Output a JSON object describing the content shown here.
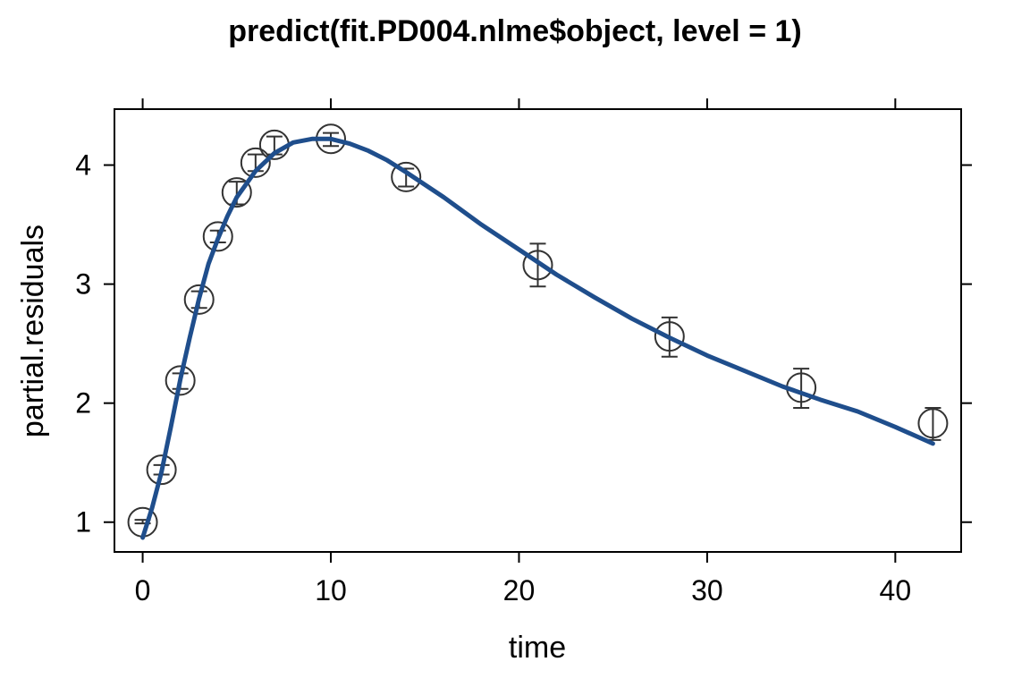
{
  "chart_data": {
    "type": "scatter",
    "title": "predict(fit.PD004.nlme$object, level = 1)",
    "xlabel": "time",
    "ylabel": "partial.residuals",
    "xlim": [
      -1.5,
      43.5
    ],
    "ylim": [
      0.75,
      4.47
    ],
    "x_ticks": [
      0,
      10,
      20,
      30,
      40
    ],
    "y_ticks": [
      1,
      2,
      3,
      4
    ],
    "grid": false,
    "legend": "none",
    "colors": {
      "line": "#1f4e8c",
      "points": "#333333"
    },
    "points": [
      {
        "x": 0,
        "y": 1.0,
        "lower": 0.99,
        "upper": 1.02
      },
      {
        "x": 1,
        "y": 1.44,
        "lower": 1.4,
        "upper": 1.48
      },
      {
        "x": 2,
        "y": 2.19,
        "lower": 2.12,
        "upper": 2.25
      },
      {
        "x": 3,
        "y": 2.87,
        "lower": 2.8,
        "upper": 2.94
      },
      {
        "x": 4,
        "y": 3.4,
        "lower": 3.35,
        "upper": 3.45
      },
      {
        "x": 5,
        "y": 3.77,
        "lower": 3.67,
        "upper": 3.86
      },
      {
        "x": 6,
        "y": 4.02,
        "lower": 3.95,
        "upper": 4.09
      },
      {
        "x": 7,
        "y": 4.17,
        "lower": 4.09,
        "upper": 4.24
      },
      {
        "x": 10,
        "y": 4.22,
        "lower": 4.16,
        "upper": 4.27
      },
      {
        "x": 14,
        "y": 3.9,
        "lower": 3.82,
        "upper": 3.97
      },
      {
        "x": 21,
        "y": 3.16,
        "lower": 2.98,
        "upper": 3.34
      },
      {
        "x": 28,
        "y": 2.56,
        "lower": 2.39,
        "upper": 2.72
      },
      {
        "x": 35,
        "y": 2.13,
        "lower": 1.96,
        "upper": 2.29
      },
      {
        "x": 42,
        "y": 1.83,
        "lower": 1.69,
        "upper": 1.96
      }
    ],
    "fit_line": {
      "x": [
        0,
        0.5,
        1,
        1.5,
        2,
        2.5,
        3,
        3.5,
        4,
        4.5,
        5,
        6,
        7,
        8,
        9,
        10,
        11,
        12,
        13,
        14,
        16,
        18,
        20,
        22,
        24,
        26,
        28,
        30,
        32,
        34,
        36,
        38,
        40,
        42
      ],
      "y": [
        0.87,
        1.12,
        1.42,
        1.8,
        2.2,
        2.55,
        2.88,
        3.17,
        3.38,
        3.57,
        3.73,
        3.95,
        4.1,
        4.19,
        4.22,
        4.22,
        4.18,
        4.12,
        4.04,
        3.94,
        3.73,
        3.5,
        3.29,
        3.08,
        2.89,
        2.71,
        2.55,
        2.4,
        2.27,
        2.14,
        2.03,
        1.93,
        1.8,
        1.66
      ]
    }
  }
}
